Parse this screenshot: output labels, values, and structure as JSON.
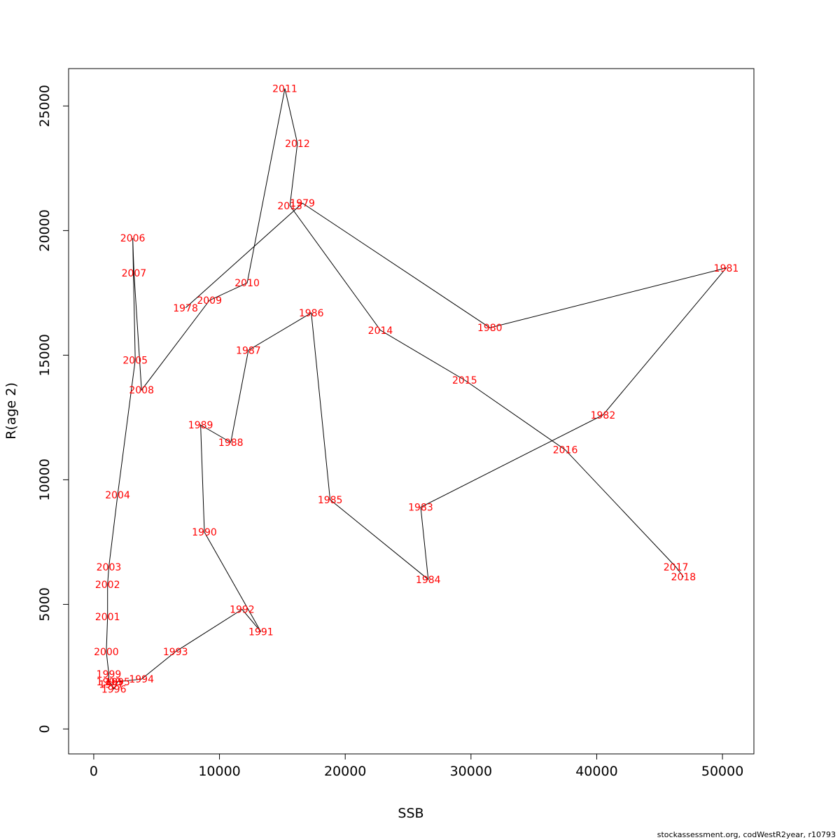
{
  "footer": {
    "credit": "stockassessment.org, codWestR2year, r10793"
  },
  "colors": {
    "label": "#ff0000",
    "line": "#000000",
    "frame": "#000000"
  },
  "chart_data": {
    "type": "line",
    "title": "",
    "xlabel": "SSB",
    "ylabel": "R(age 2)",
    "xlim": [
      -2000,
      52500
    ],
    "ylim": [
      -1000,
      26500
    ],
    "xticks": [
      0,
      10000,
      20000,
      30000,
      40000,
      50000
    ],
    "yticks": [
      0,
      5000,
      10000,
      15000,
      20000,
      25000
    ],
    "grid": false,
    "legend": "none",
    "points": [
      {
        "year": "1978",
        "x": 7300,
        "y": 16900
      },
      {
        "year": "1979",
        "x": 16600,
        "y": 21100
      },
      {
        "year": "1980",
        "x": 31500,
        "y": 16100
      },
      {
        "year": "1981",
        "x": 50300,
        "y": 18500
      },
      {
        "year": "1982",
        "x": 40500,
        "y": 12600
      },
      {
        "year": "1983",
        "x": 26000,
        "y": 8900
      },
      {
        "year": "1984",
        "x": 26600,
        "y": 6000
      },
      {
        "year": "1985",
        "x": 18800,
        "y": 9200
      },
      {
        "year": "1986",
        "x": 17300,
        "y": 16700
      },
      {
        "year": "1987",
        "x": 12300,
        "y": 15200
      },
      {
        "year": "1988",
        "x": 10900,
        "y": 11500
      },
      {
        "year": "1989",
        "x": 8500,
        "y": 12200
      },
      {
        "year": "1990",
        "x": 8800,
        "y": 7900
      },
      {
        "year": "1991",
        "x": 13300,
        "y": 3900
      },
      {
        "year": "1992",
        "x": 11800,
        "y": 4800
      },
      {
        "year": "1993",
        "x": 6500,
        "y": 3100
      },
      {
        "year": "1994",
        "x": 3800,
        "y": 2000
      },
      {
        "year": "1995",
        "x": 1900,
        "y": 1900
      },
      {
        "year": "1996",
        "x": 1600,
        "y": 1600
      },
      {
        "year": "1997",
        "x": 1400,
        "y": 1800
      },
      {
        "year": "1998",
        "x": 1200,
        "y": 1900
      },
      {
        "year": "1999",
        "x": 1200,
        "y": 2200
      },
      {
        "year": "2000",
        "x": 1000,
        "y": 3100
      },
      {
        "year": "2001",
        "x": 1100,
        "y": 4500
      },
      {
        "year": "2002",
        "x": 1100,
        "y": 5800
      },
      {
        "year": "2003",
        "x": 1200,
        "y": 6500
      },
      {
        "year": "2004",
        "x": 1900,
        "y": 9400
      },
      {
        "year": "2005",
        "x": 3300,
        "y": 14800
      },
      {
        "year": "2006",
        "x": 3100,
        "y": 19700
      },
      {
        "year": "2007",
        "x": 3200,
        "y": 18300
      },
      {
        "year": "2008",
        "x": 3800,
        "y": 13600
      },
      {
        "year": "2009",
        "x": 9200,
        "y": 17200
      },
      {
        "year": "2010",
        "x": 12200,
        "y": 17900
      },
      {
        "year": "2011",
        "x": 15200,
        "y": 25700
      },
      {
        "year": "2012",
        "x": 16200,
        "y": 23500
      },
      {
        "year": "2013",
        "x": 15600,
        "y": 21000
      },
      {
        "year": "2014",
        "x": 22800,
        "y": 16000
      },
      {
        "year": "2015",
        "x": 29500,
        "y": 14000
      },
      {
        "year": "2016",
        "x": 37500,
        "y": 11200
      },
      {
        "year": "2017",
        "x": 46300,
        "y": 6500
      },
      {
        "year": "2018",
        "x": 46900,
        "y": 6100
      }
    ]
  }
}
